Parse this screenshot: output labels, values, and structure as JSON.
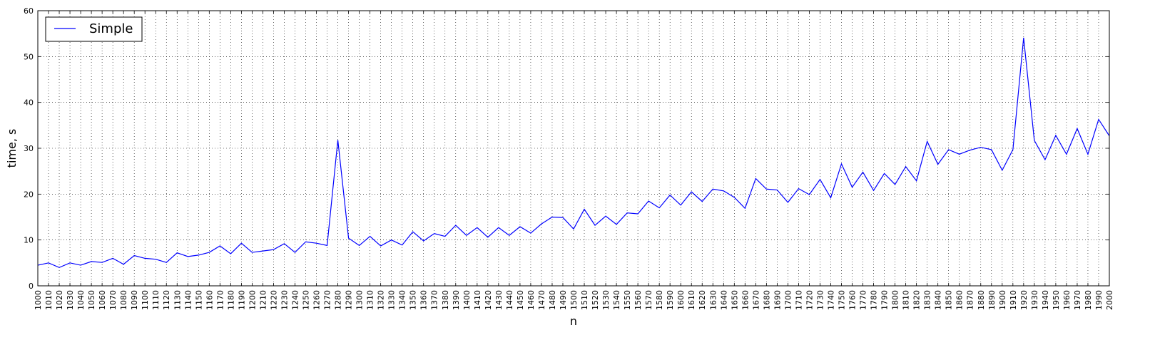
{
  "chart_data": {
    "type": "line",
    "title": "",
    "xlabel": "n",
    "ylabel": "time, s",
    "xlim": [
      1000,
      2000
    ],
    "ylim": [
      0,
      60
    ],
    "x_ticks": [
      1000,
      1010,
      1020,
      1030,
      1040,
      1050,
      1060,
      1070,
      1080,
      1090,
      1100,
      1110,
      1120,
      1130,
      1140,
      1150,
      1160,
      1170,
      1180,
      1190,
      1200,
      1210,
      1220,
      1230,
      1240,
      1250,
      1260,
      1270,
      1280,
      1290,
      1300,
      1310,
      1320,
      1330,
      1340,
      1350,
      1360,
      1370,
      1380,
      1390,
      1400,
      1410,
      1420,
      1430,
      1440,
      1450,
      1460,
      1470,
      1480,
      1490,
      1500,
      1510,
      1520,
      1530,
      1540,
      1550,
      1560,
      1570,
      1580,
      1590,
      1600,
      1610,
      1620,
      1630,
      1640,
      1650,
      1660,
      1670,
      1680,
      1690,
      1700,
      1710,
      1720,
      1730,
      1740,
      1750,
      1760,
      1770,
      1780,
      1790,
      1800,
      1810,
      1820,
      1830,
      1840,
      1850,
      1860,
      1870,
      1880,
      1890,
      1900,
      1910,
      1920,
      1930,
      1940,
      1950,
      1960,
      1970,
      1980,
      1990,
      2000
    ],
    "y_ticks": [
      0,
      10,
      20,
      30,
      40,
      50,
      60
    ],
    "grid": true,
    "legend_position": "top-left",
    "series": [
      {
        "name": "Simple",
        "color": "#0000ff",
        "x": [
          1000,
          1010,
          1020,
          1030,
          1040,
          1050,
          1060,
          1070,
          1080,
          1090,
          1100,
          1110,
          1120,
          1130,
          1140,
          1150,
          1160,
          1170,
          1180,
          1190,
          1200,
          1210,
          1220,
          1230,
          1240,
          1250,
          1260,
          1270,
          1280,
          1290,
          1300,
          1310,
          1320,
          1330,
          1340,
          1350,
          1360,
          1370,
          1380,
          1390,
          1400,
          1410,
          1420,
          1430,
          1440,
          1450,
          1460,
          1470,
          1480,
          1490,
          1500,
          1510,
          1520,
          1530,
          1540,
          1550,
          1560,
          1570,
          1580,
          1590,
          1600,
          1610,
          1620,
          1630,
          1640,
          1650,
          1660,
          1670,
          1680,
          1690,
          1700,
          1710,
          1720,
          1730,
          1740,
          1750,
          1760,
          1770,
          1780,
          1790,
          1800,
          1810,
          1820,
          1830,
          1840,
          1850,
          1860,
          1870,
          1880,
          1890,
          1900,
          1910,
          1920,
          1930,
          1940,
          1950,
          1960,
          1970,
          1980,
          1990,
          2000
        ],
        "values": [
          4.5,
          5.0,
          4.0,
          5.0,
          4.5,
          5.3,
          5.1,
          6.0,
          4.7,
          6.6,
          6.0,
          5.8,
          5.1,
          7.2,
          6.4,
          6.7,
          7.3,
          8.7,
          7.0,
          9.3,
          7.3,
          7.6,
          7.9,
          9.2,
          7.3,
          9.6,
          9.3,
          8.8,
          31.8,
          10.4,
          8.8,
          10.8,
          8.7,
          10.0,
          8.9,
          11.8,
          9.8,
          11.4,
          10.8,
          13.2,
          11.0,
          12.7,
          10.6,
          12.7,
          11.0,
          12.9,
          11.5,
          13.5,
          15.0,
          14.9,
          12.4,
          16.7,
          13.2,
          15.2,
          13.4,
          15.9,
          15.7,
          18.5,
          17.0,
          19.8,
          17.6,
          20.5,
          18.4,
          21.1,
          20.7,
          19.3,
          16.9,
          23.4,
          21.1,
          20.9,
          18.2,
          21.2,
          19.9,
          23.2,
          19.2,
          26.6,
          21.5,
          24.8,
          20.8,
          24.5,
          22.1,
          26.0,
          22.9,
          31.5,
          26.5,
          29.7,
          28.7,
          29.6,
          30.2,
          29.7,
          25.2,
          29.7,
          54.1,
          31.7,
          27.5,
          32.8,
          28.7,
          34.3,
          28.7,
          36.3,
          32.7
        ]
      }
    ]
  }
}
